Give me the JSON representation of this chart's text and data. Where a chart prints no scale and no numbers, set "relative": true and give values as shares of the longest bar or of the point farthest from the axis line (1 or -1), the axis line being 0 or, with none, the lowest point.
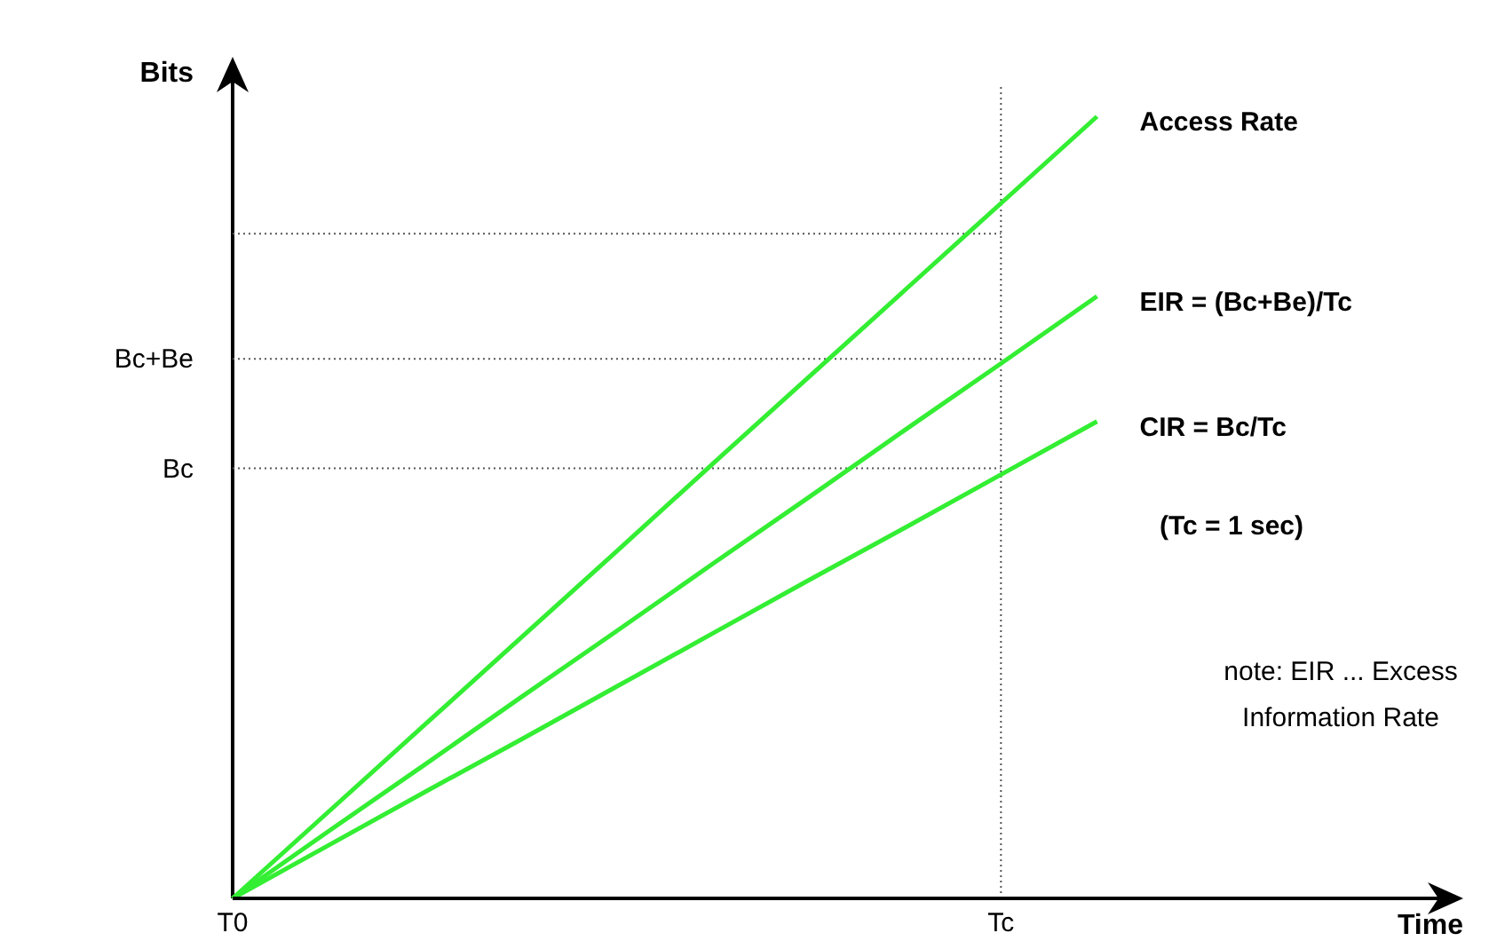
{
  "chart_data": {
    "type": "line",
    "xlabel": "Time",
    "ylabel": "Bits",
    "relative": true,
    "categories": [
      "T0",
      null,
      null,
      null,
      null,
      null,
      null,
      null,
      "Tc",
      null,
      null,
      null,
      null
    ],
    "series": [
      {
        "name": "Access Rate",
        "color": "#33ee33",
        "values": [
          0,
          0.111,
          0.222,
          0.333,
          0.444,
          0.556,
          0.667,
          0.778,
          0.889,
          1,
          null,
          null,
          null
        ]
      },
      {
        "name": "EIR = (Bc+Be)/Tc",
        "color": "#33ee33",
        "values": [
          0,
          0.086,
          0.171,
          0.257,
          0.342,
          0.428,
          0.513,
          0.599,
          0.684,
          0.77,
          null,
          null,
          null
        ]
      },
      {
        "name": "CIR = Bc/Tc",
        "color": "#33ee33",
        "values": [
          0,
          0.068,
          0.136,
          0.203,
          0.271,
          0.339,
          0.407,
          0.474,
          0.542,
          0.61,
          null,
          null,
          null
        ]
      }
    ],
    "ref_lines": [
      {
        "axis": "y",
        "value": 0.55,
        "label": "Bc",
        "line_style": "dotted",
        "color": "#555555"
      },
      {
        "axis": "y",
        "value": 0.69,
        "label": "Bc+Be",
        "line_style": "dotted",
        "color": "#555555"
      },
      {
        "axis": "y",
        "value": 0.85,
        "line_style": "dotted",
        "color": "#555555"
      },
      {
        "axis": "x",
        "value": "Tc",
        "line_style": "dotted",
        "color": "#555555"
      }
    ],
    "annotations": [
      "(Tc = 1 sec)",
      "note: EIR ... Excess Information Rate"
    ],
    "grid": false,
    "legend": false,
    "marker": "none",
    "line_style": "solid"
  }
}
